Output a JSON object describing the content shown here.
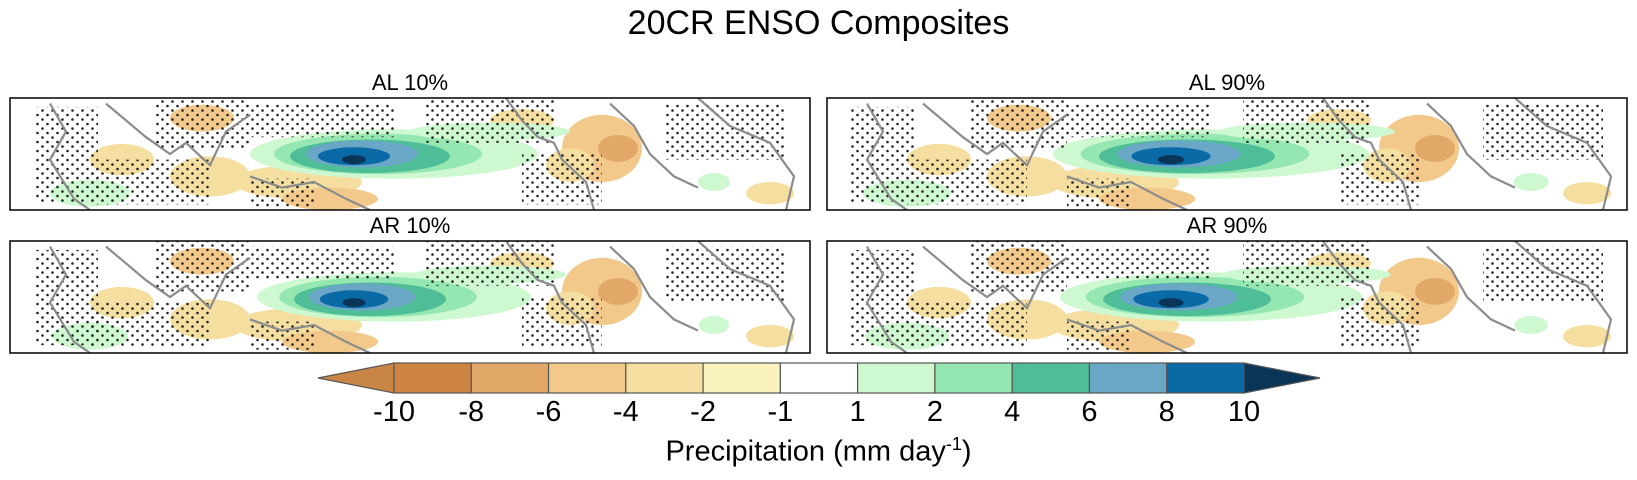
{
  "chart_data": {
    "type": "heatmap",
    "title": "20CR ENSO Composites",
    "panels": [
      {
        "title": "AL 10%",
        "warm_pool": 1.0
      },
      {
        "title": "AL 90%",
        "warm_pool": 1.1
      },
      {
        "title": "AR 10%",
        "warm_pool": 0.95
      },
      {
        "title": "AR 90%",
        "warm_pool": 1.05
      }
    ],
    "colorbar": {
      "levels": [
        "-10",
        "-8",
        "-6",
        "-4",
        "-2",
        "-1",
        "1",
        "2",
        "4",
        "6",
        "8",
        "10"
      ],
      "colors": [
        "#c98546",
        "#cd8541",
        "#e2a868",
        "#f2c98a",
        "#f5dfa0",
        "#fbf3be",
        "#ffffff",
        "#cdf8d0",
        "#95e7b1",
        "#4fbd98",
        "#6aa6c6",
        "#0a6aa6",
        "#0a3556"
      ],
      "label_text": "Precipitation (mm day",
      "label_exponent": "-1"
    },
    "stippling": "dots indicate non-significant regions",
    "coastline_color": "#8c8c8c"
  }
}
